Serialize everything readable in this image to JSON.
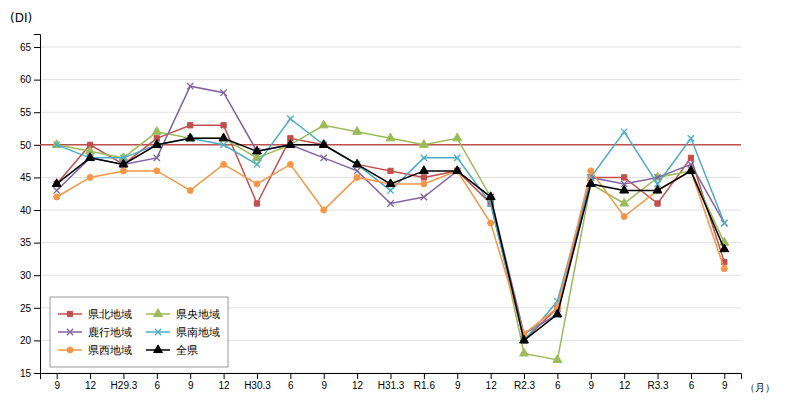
{
  "chart_data": {
    "type": "line",
    "ylabel": "(DI)",
    "xlabel": "（月）",
    "categories": [
      "9",
      "12",
      "H29.3",
      "6",
      "9",
      "12",
      "H30.3",
      "6",
      "9",
      "12",
      "H31.3",
      "R1.6",
      "9",
      "12",
      "R2.3",
      "6",
      "9",
      "12",
      "R3.3",
      "6",
      "9"
    ],
    "series": [
      {
        "name": "県北地域",
        "color": "#c0504d",
        "marker": "square",
        "values": [
          44,
          50,
          47,
          51,
          53,
          53,
          41,
          51,
          50,
          47,
          46,
          45,
          46,
          41,
          20,
          25,
          45,
          45,
          41,
          48,
          32
        ]
      },
      {
        "name": "県央地域",
        "color": "#9bbb59",
        "marker": "triangle",
        "values": [
          50,
          49,
          48,
          52,
          51,
          51,
          48,
          50,
          53,
          52,
          51,
          50,
          51,
          42,
          18,
          17,
          44,
          41,
          45,
          46,
          35
        ]
      },
      {
        "name": "鹿行地域",
        "color": "#8064a2",
        "marker": "x",
        "values": [
          43,
          48,
          47,
          48,
          59,
          58,
          49,
          50,
          48,
          46,
          41,
          42,
          46,
          42,
          21,
          24,
          45,
          44,
          45,
          47,
          38
        ]
      },
      {
        "name": "県南地域",
        "color": "#4bacc6",
        "marker": "x",
        "values": [
          50,
          48,
          48,
          50,
          51,
          50,
          47,
          54,
          50,
          47,
          43,
          48,
          48,
          41,
          20,
          26,
          45,
          52,
          44,
          51,
          38
        ]
      },
      {
        "name": "県西地域",
        "color": "#f79646",
        "marker": "circle",
        "values": [
          42,
          45,
          46,
          46,
          43,
          47,
          44,
          47,
          40,
          45,
          44,
          44,
          46,
          38,
          21,
          25,
          46,
          39,
          43,
          46,
          31
        ]
      },
      {
        "name": "全県",
        "color": "#000000",
        "marker": "triangle",
        "values": [
          44,
          48,
          47,
          50,
          51,
          51,
          49,
          50,
          50,
          47,
          44,
          46,
          46,
          42,
          20,
          24,
          44,
          43,
          43,
          46,
          34
        ]
      }
    ],
    "reference_line": {
      "value": 50,
      "color": "#c0504d"
    },
    "ylim": [
      15,
      67
    ],
    "yticks": [
      15,
      20,
      25,
      30,
      35,
      40,
      45,
      50,
      55,
      60,
      65
    ],
    "grid": true,
    "legend": "lower left"
  }
}
